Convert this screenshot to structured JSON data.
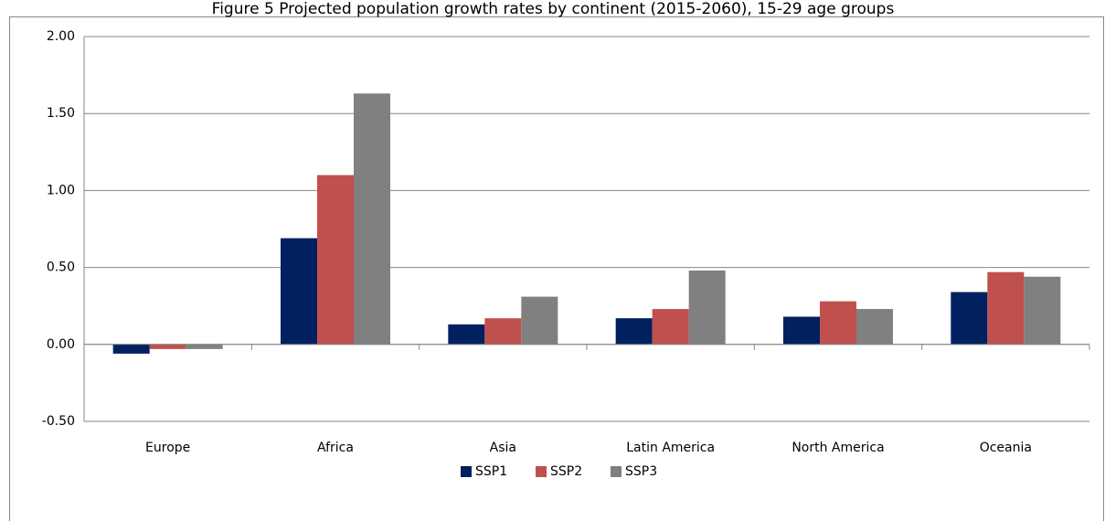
{
  "chart_data": {
    "type": "bar",
    "title": "Figure 5 Projected population growth rates by continent (2015-2060), 15-29 age groups",
    "categories": [
      "Europe",
      "Africa",
      "Asia",
      "Latin America",
      "North America",
      "Oceania"
    ],
    "series": [
      {
        "name": "SSP1",
        "color": "#002060",
        "values": [
          -0.06,
          0.69,
          0.13,
          0.17,
          0.18,
          0.34
        ]
      },
      {
        "name": "SSP2",
        "color": "#c0504d",
        "values": [
          -0.03,
          1.1,
          0.17,
          0.23,
          0.28,
          0.47
        ]
      },
      {
        "name": "SSP3",
        "color": "#808080",
        "values": [
          -0.03,
          1.63,
          0.31,
          0.48,
          0.23,
          0.44
        ]
      }
    ],
    "ylim": [
      -0.5,
      2.0
    ],
    "yticks": [
      {
        "value": -0.5,
        "label": "-0.50"
      },
      {
        "value": 0,
        "label": "0.00"
      },
      {
        "value": 0.5,
        "label": "0.50"
      },
      {
        "value": 1.0,
        "label": "1.00"
      },
      {
        "value": 1.5,
        "label": "1.50"
      },
      {
        "value": 2.0,
        "label": "2.00"
      }
    ],
    "grid": true,
    "legend": "bottom"
  }
}
